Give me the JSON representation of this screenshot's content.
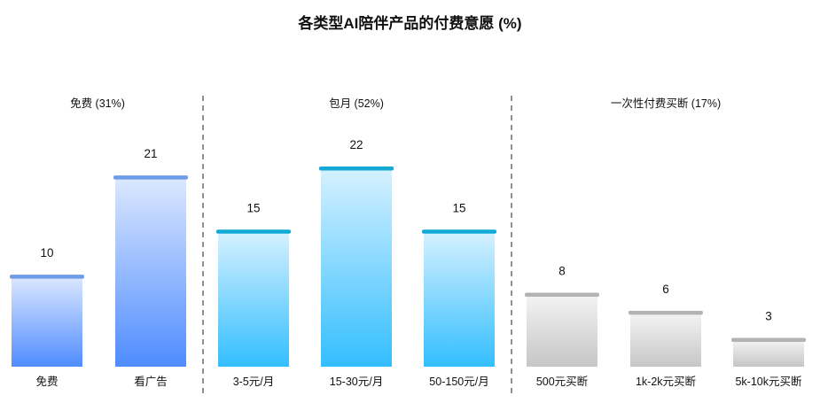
{
  "chart_data": {
    "type": "bar",
    "title": "各类型AI陪伴产品的付费意愿 (%)",
    "xlabel": "",
    "ylabel": "",
    "ylim": [
      0,
      22
    ],
    "grid": false,
    "groups": [
      {
        "label": "免费 (31%)",
        "colors": {
          "cap": "#6E9CE8",
          "top": "#DCE8FF",
          "bottom": "#4F8CFF"
        },
        "categories": [
          "免费",
          "看广告"
        ],
        "values": [
          10,
          21
        ]
      },
      {
        "label": "包月 (52%)",
        "colors": {
          "cap": "#12A9D6",
          "top": "#D6F1FF",
          "bottom": "#33BEFF"
        },
        "categories": [
          "3-5元/月",
          "15-30元/月",
          "50-150元/月"
        ],
        "values": [
          15,
          22,
          15
        ]
      },
      {
        "label": "一次性付费买断 (17%)",
        "colors": {
          "cap": "#B3B3B3",
          "top": "#F4F4F4",
          "bottom": "#C6C6C6"
        },
        "categories": [
          "500元买断",
          "1k-2k元买断",
          "5k-10k元买断"
        ],
        "values": [
          8,
          6,
          3
        ]
      }
    ]
  }
}
